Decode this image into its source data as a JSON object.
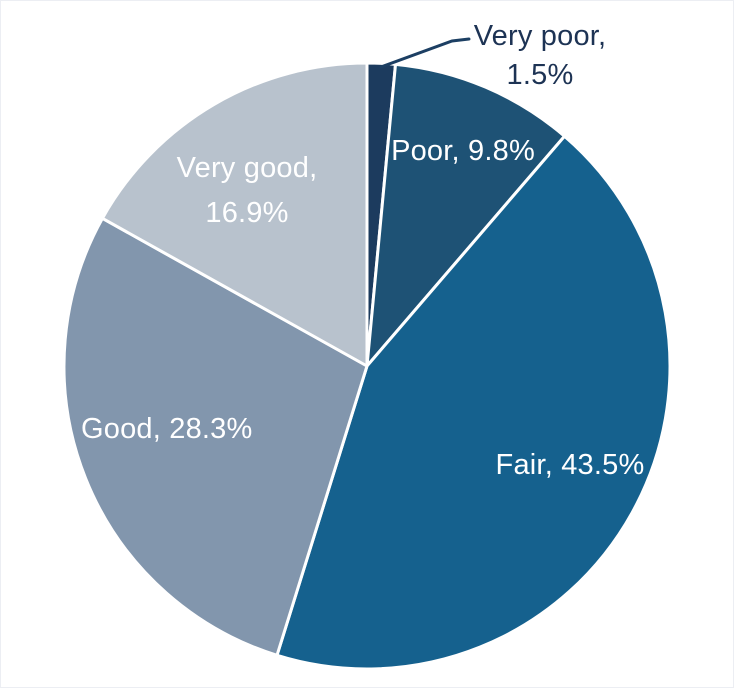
{
  "chart_data": {
    "type": "pie",
    "title": "",
    "categories": [
      "Very poor",
      "Poor",
      "Fair",
      "Good",
      "Very good"
    ],
    "values": [
      1.5,
      9.8,
      43.5,
      28.3,
      16.9
    ],
    "unit": "%",
    "colors": [
      "#1c3b5e",
      "#1e5275",
      "#15618e",
      "#8296ad",
      "#b8c2cd"
    ],
    "slice_border_color": "#ffffff",
    "start_angle_deg": 0,
    "direction": "clockwise",
    "legend": "none",
    "leader_line_color": "#1c3f63",
    "labels": [
      {
        "text": "Very poor, 1.5%",
        "placement": "outside-callout",
        "color": "#1d3354"
      },
      {
        "text": "Poor, 9.8%",
        "placement": "inside",
        "color": "#ffffff"
      },
      {
        "text": "Fair, 43.5%",
        "placement": "inside",
        "color": "#ffffff"
      },
      {
        "text": "Good, 28.3%",
        "placement": "inside",
        "color": "#ffffff"
      },
      {
        "text": "Very good, 16.9%",
        "placement": "inside",
        "color": "#ffffff"
      }
    ]
  }
}
